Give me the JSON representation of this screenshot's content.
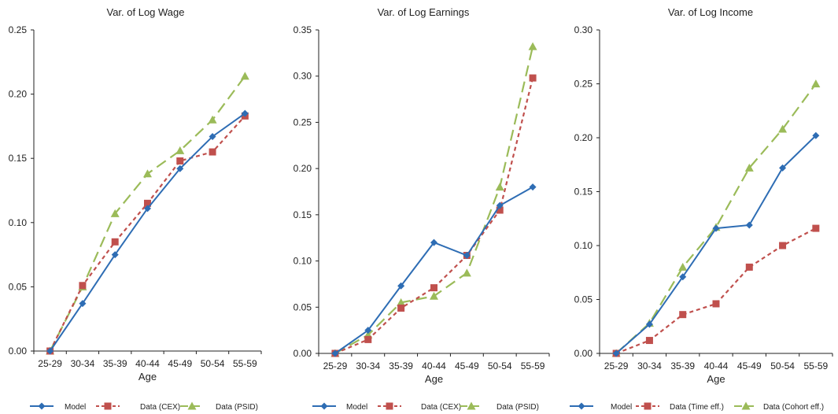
{
  "colors": {
    "model": "#2E6DB4",
    "data1": "#C0504D",
    "data2": "#9BBB59",
    "axis": "#222222"
  },
  "chart_data": [
    {
      "type": "line",
      "title": "Var. of Log Wage",
      "xlabel": "Age",
      "categories": [
        "25-29",
        "30-34",
        "35-39",
        "40-44",
        "45-49",
        "50-54",
        "55-59"
      ],
      "ylim": [
        0,
        0.25
      ],
      "yticks": [
        "0.00",
        "0.05",
        "0.10",
        "0.15",
        "0.20",
        "0.25"
      ],
      "series": [
        {
          "name": "Model",
          "values": [
            0.0,
            0.037,
            0.075,
            0.111,
            0.142,
            0.167,
            0.185
          ],
          "marker": "diamond",
          "dash": "solid",
          "colorKey": "model"
        },
        {
          "name": "Data (CEX)",
          "values": [
            0.0,
            0.051,
            0.085,
            0.115,
            0.148,
            0.155,
            0.183
          ],
          "marker": "square",
          "dash": "short",
          "colorKey": "data1"
        },
        {
          "name": "Data (PSID)",
          "values": [
            0.0,
            0.05,
            0.107,
            0.138,
            0.156,
            0.18,
            0.214
          ],
          "marker": "triangle",
          "dash": "long",
          "colorKey": "data2"
        }
      ],
      "grid": false,
      "legend": "bottom"
    },
    {
      "type": "line",
      "title": "Var. of Log Earnings",
      "xlabel": "Age",
      "categories": [
        "25-29",
        "30-34",
        "35-39",
        "40-44",
        "45-49",
        "50-54",
        "55-59"
      ],
      "ylim": [
        0,
        0.35
      ],
      "yticks": [
        "0.00",
        "0.05",
        "0.10",
        "0.15",
        "0.20",
        "0.25",
        "0.30",
        "0.35"
      ],
      "series": [
        {
          "name": "Model",
          "values": [
            0.0,
            0.025,
            0.073,
            0.12,
            0.106,
            0.16,
            0.18
          ],
          "marker": "diamond",
          "dash": "solid",
          "colorKey": "model"
        },
        {
          "name": "Data (CEX)",
          "values": [
            0.0,
            0.015,
            0.049,
            0.071,
            0.106,
            0.155,
            0.298
          ],
          "marker": "square",
          "dash": "short",
          "colorKey": "data1"
        },
        {
          "name": "Data (PSID)",
          "values": [
            0.0,
            0.02,
            0.055,
            0.062,
            0.087,
            0.18,
            0.332
          ],
          "marker": "triangle",
          "dash": "long",
          "colorKey": "data2"
        }
      ],
      "grid": false,
      "legend": "bottom"
    },
    {
      "type": "line",
      "title": "Var. of Log Income",
      "xlabel": "Age",
      "categories": [
        "25-29",
        "30-34",
        "35-39",
        "40-44",
        "45-49",
        "50-54",
        "55-59"
      ],
      "ylim": [
        0,
        0.3
      ],
      "yticks": [
        "0.00",
        "0.05",
        "0.10",
        "0.15",
        "0.20",
        "0.25",
        "0.30"
      ],
      "series": [
        {
          "name": "Model",
          "values": [
            0.0,
            0.027,
            0.071,
            0.116,
            0.119,
            0.172,
            0.202
          ],
          "marker": "diamond",
          "dash": "solid",
          "colorKey": "model"
        },
        {
          "name": "Data (Time eff.)",
          "values": [
            0.0,
            0.012,
            0.036,
            0.046,
            0.08,
            0.1,
            0.116
          ],
          "marker": "square",
          "dash": "short",
          "colorKey": "data1"
        },
        {
          "name": "Data (Cohort eff.)",
          "values": [
            0.0,
            0.028,
            0.08,
            0.117,
            0.172,
            0.208,
            0.25
          ],
          "marker": "triangle",
          "dash": "long",
          "colorKey": "data2"
        }
      ],
      "grid": false,
      "legend": "bottom"
    }
  ]
}
